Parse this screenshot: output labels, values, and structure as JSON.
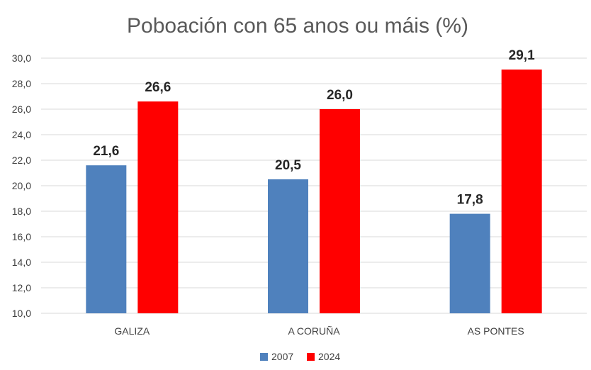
{
  "chart_data": {
    "type": "bar",
    "title": "Poboación con 65 anos ou máis (%)",
    "categories": [
      "GALIZA",
      "A CORUÑA",
      "AS PONTES"
    ],
    "series": [
      {
        "name": "2007",
        "color": "#4F81BD",
        "values": [
          21.6,
          20.5,
          17.8
        ],
        "labels": [
          "21,6",
          "20,5",
          "17,8"
        ]
      },
      {
        "name": "2024",
        "color": "#FF0000",
        "values": [
          26.6,
          26.0,
          29.1
        ],
        "labels": [
          "26,6",
          "26,0",
          "29,1"
        ]
      }
    ],
    "ylim": [
      10,
      30
    ],
    "yticks": [
      "10,0",
      "12,0",
      "14,0",
      "16,0",
      "18,0",
      "20,0",
      "22,0",
      "24,0",
      "26,0",
      "28,0",
      "30,0"
    ],
    "xlabel": "",
    "ylabel": "",
    "grid": true,
    "legend": "bottom"
  }
}
